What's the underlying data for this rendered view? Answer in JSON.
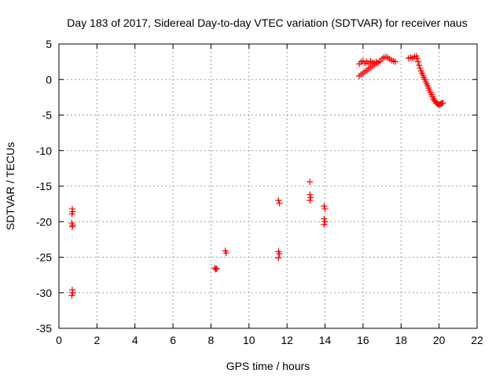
{
  "chart_data": {
    "type": "scatter",
    "title": "Day 183 of 2017, Sidereal Day-to-day VTEC variation (SDTVAR) for receiver naus",
    "xlabel": "GPS time / hours",
    "ylabel": "SDTVAR / TECUs",
    "xlim": [
      0,
      22
    ],
    "ylim": [
      -35,
      5
    ],
    "xticks": [
      0,
      2,
      4,
      6,
      8,
      10,
      12,
      14,
      16,
      18,
      20,
      22
    ],
    "yticks": [
      -35,
      -30,
      -25,
      -20,
      -15,
      -10,
      -5,
      0,
      5
    ],
    "xtick_labels": [
      "0",
      "2",
      "4",
      "6",
      "8",
      "10",
      "12",
      "14",
      "16",
      "18",
      "20",
      "22"
    ],
    "ytick_labels": [
      "-35",
      "-30",
      "-25",
      "-20",
      "-15",
      "-10",
      "-5",
      "0",
      "5"
    ],
    "grid": true,
    "marker": "+",
    "color": "#ff0000",
    "series": [
      {
        "name": "SDTVAR",
        "points": [
          [
            0.7,
            -18.2
          ],
          [
            0.72,
            -18.6
          ],
          [
            0.68,
            -18.9
          ],
          [
            0.68,
            -20.2
          ],
          [
            0.72,
            -20.5
          ],
          [
            0.7,
            -20.7
          ],
          [
            0.7,
            -29.6
          ],
          [
            0.72,
            -30.0
          ],
          [
            0.68,
            -30.4
          ],
          [
            8.2,
            -26.5
          ],
          [
            8.25,
            -26.7
          ],
          [
            8.3,
            -26.6
          ],
          [
            8.75,
            -24.1
          ],
          [
            8.8,
            -24.4
          ],
          [
            11.55,
            -17.0
          ],
          [
            11.6,
            -17.4
          ],
          [
            11.55,
            -24.2
          ],
          [
            11.6,
            -24.5
          ],
          [
            11.55,
            -25.1
          ],
          [
            13.2,
            -14.4
          ],
          [
            13.2,
            -16.2
          ],
          [
            13.25,
            -16.6
          ],
          [
            13.2,
            -17.0
          ],
          [
            13.95,
            -17.8
          ],
          [
            14.0,
            -18.2
          ],
          [
            13.95,
            -19.6
          ],
          [
            14.0,
            -20.0
          ],
          [
            13.95,
            -20.4
          ],
          [
            15.8,
            2.2
          ],
          [
            15.9,
            2.5
          ],
          [
            16.0,
            2.6
          ],
          [
            16.1,
            2.3
          ],
          [
            16.2,
            2.5
          ],
          [
            16.3,
            2.2
          ],
          [
            16.4,
            2.6
          ],
          [
            16.5,
            2.4
          ],
          [
            16.6,
            2.3
          ],
          [
            16.7,
            2.5
          ],
          [
            16.8,
            2.4
          ],
          [
            16.9,
            2.6
          ],
          [
            17.0,
            2.9
          ],
          [
            17.1,
            3.1
          ],
          [
            17.2,
            3.2
          ],
          [
            17.3,
            3.1
          ],
          [
            17.4,
            2.9
          ],
          [
            17.5,
            2.7
          ],
          [
            17.6,
            2.6
          ],
          [
            17.7,
            2.5
          ],
          [
            15.8,
            0.5
          ],
          [
            15.9,
            0.7
          ],
          [
            16.0,
            0.9
          ],
          [
            16.1,
            1.1
          ],
          [
            16.2,
            1.3
          ],
          [
            16.3,
            1.5
          ],
          [
            16.4,
            1.7
          ],
          [
            16.5,
            1.9
          ],
          [
            16.6,
            2.1
          ],
          [
            16.7,
            2.3
          ],
          [
            18.4,
            3.0
          ],
          [
            18.5,
            3.1
          ],
          [
            18.6,
            3.0
          ],
          [
            18.7,
            3.2
          ],
          [
            18.8,
            3.3
          ],
          [
            18.85,
            3.0
          ],
          [
            18.9,
            2.5
          ],
          [
            18.95,
            2.0
          ],
          [
            19.0,
            1.6
          ],
          [
            19.05,
            1.2
          ],
          [
            19.1,
            0.9
          ],
          [
            19.15,
            0.6
          ],
          [
            19.2,
            0.3
          ],
          [
            19.25,
            0.0
          ],
          [
            19.3,
            -0.3
          ],
          [
            19.35,
            -0.6
          ],
          [
            19.4,
            -0.9
          ],
          [
            19.45,
            -1.2
          ],
          [
            19.5,
            -1.5
          ],
          [
            19.55,
            -1.8
          ],
          [
            19.6,
            -2.1
          ],
          [
            19.65,
            -2.4
          ],
          [
            19.7,
            -2.7
          ],
          [
            19.75,
            -2.9
          ],
          [
            19.8,
            -3.1
          ],
          [
            19.85,
            -3.3
          ],
          [
            19.9,
            -3.4
          ],
          [
            19.95,
            -3.5
          ],
          [
            20.0,
            -3.5
          ],
          [
            20.05,
            -3.5
          ],
          [
            20.1,
            -3.4
          ],
          [
            20.15,
            -3.3
          ],
          [
            20.2,
            -3.3
          ]
        ]
      }
    ]
  }
}
